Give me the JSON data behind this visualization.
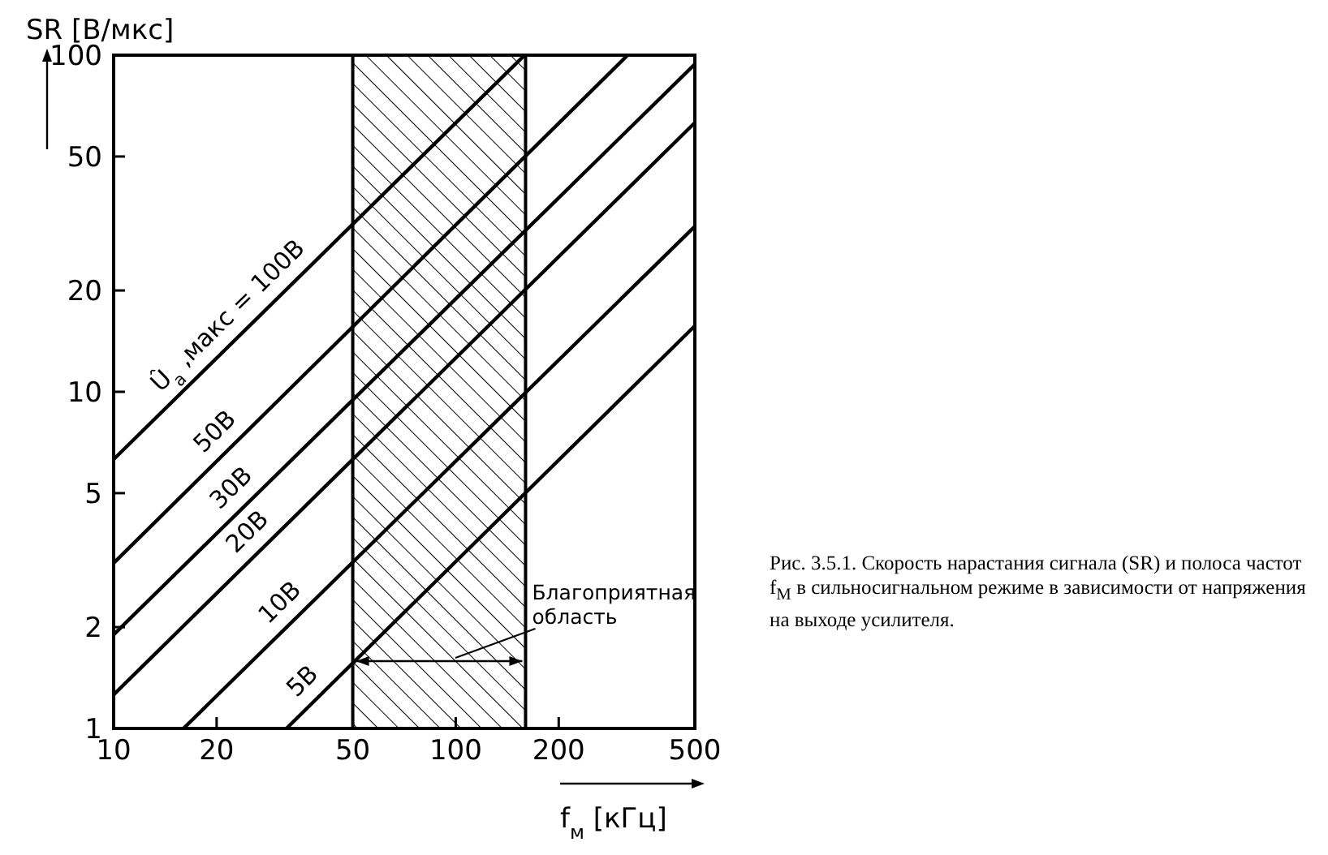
{
  "chart_data": {
    "type": "line",
    "xlabel": "f$_{м}$ [кГц]",
    "ylabel": "SR [В/мкс]",
    "log": "xy",
    "marker": "none",
    "line_style": "solid",
    "xlim": [
      10,
      500
    ],
    "xticks": [
      10,
      20,
      50,
      100,
      200,
      500
    ],
    "ylim": [
      1,
      100
    ],
    "yticks": [
      1,
      2,
      5,
      10,
      20,
      50,
      100
    ],
    "series": [
      {
        "name": "Û$_{a}$ ,макс = 100В",
        "color": "#000000",
        "x": [
          10,
          159
        ],
        "values": [
          6.3,
          100
        ]
      },
      {
        "name": "50В",
        "color": "#000000",
        "x": [
          10,
          318
        ],
        "values": [
          3.1,
          100
        ]
      },
      {
        "name": "30В",
        "color": "#000000",
        "x": [
          10,
          500
        ],
        "values": [
          1.9,
          94
        ]
      },
      {
        "name": "20В",
        "color": "#000000",
        "x": [
          10,
          500
        ],
        "values": [
          1.26,
          63
        ]
      },
      {
        "name": "10В",
        "color": "#000000",
        "x": [
          16,
          500
        ],
        "values": [
          1,
          31
        ]
      },
      {
        "name": "5В",
        "color": "#000000",
        "x": [
          32,
          500
        ],
        "values": [
          1,
          15.7
        ]
      }
    ],
    "bands": [
      {
        "axis": "x",
        "from": 50,
        "to": 160,
        "label": "Благоприятная область",
        "color": "#000000"
      }
    ],
    "annotations": [
      "Рис. 3.5.1. Скорость нарастания сигнала (SR) и полоса частот f$_{M}$ в сильносигнальном режиме в зависимости от напряжения на выходе усилителя."
    ]
  }
}
